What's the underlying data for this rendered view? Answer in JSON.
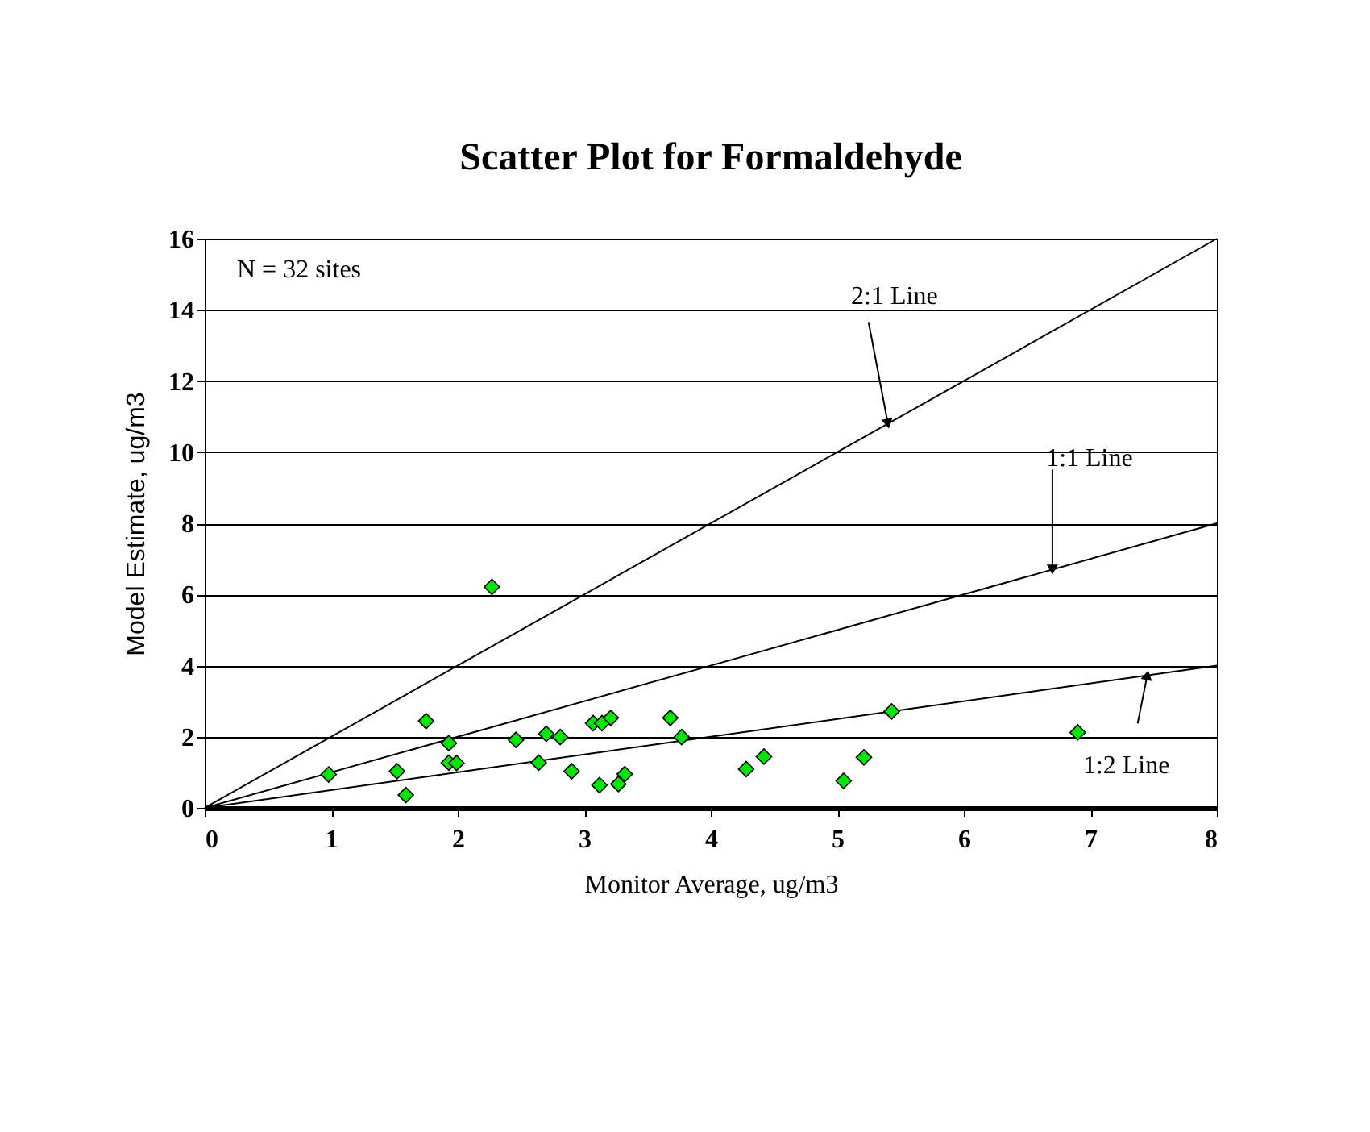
{
  "chart_data": {
    "type": "scatter",
    "title": "Scatter Plot for Formaldehyde",
    "xlabel": "Monitor Average, ug/m3",
    "ylabel": "Model Estimate, ug/m3",
    "xlim": [
      0,
      8
    ],
    "ylim": [
      0,
      16
    ],
    "xticks": [
      0,
      1,
      2,
      3,
      4,
      5,
      6,
      7,
      8
    ],
    "yticks": [
      0,
      2,
      4,
      6,
      8,
      10,
      12,
      14,
      16
    ],
    "grid": "y",
    "annotations": [
      "N = 32 sites",
      {
        "text": "2:1 Line",
        "x": 5.4,
        "y": 10.8
      },
      {
        "text": "1:1 Line",
        "x": 6.7,
        "y": 6.7
      },
      {
        "text": "1:2 Line",
        "x": 7.45,
        "y": 3.73
      }
    ],
    "series": [
      {
        "color": "#00e600",
        "marker": "diamond",
        "x": [
          0.98,
          1.52,
          1.59,
          1.75,
          1.93,
          1.93,
          1.99,
          2.27,
          2.46,
          2.64,
          2.7,
          2.81,
          2.9,
          3.07,
          3.14,
          3.21,
          3.12,
          3.27,
          3.32,
          3.68,
          3.77,
          4.28,
          4.42,
          5.05,
          5.21,
          5.43,
          6.9
        ],
        "values": [
          0.94,
          1.03,
          0.36,
          2.44,
          1.82,
          1.27,
          1.26,
          6.21,
          1.91,
          1.27,
          2.08,
          1.99,
          1.03,
          2.38,
          2.38,
          2.53,
          0.64,
          0.67,
          0.95,
          2.53,
          1.99,
          1.09,
          1.44,
          0.76,
          1.42,
          2.71,
          2.12
        ]
      },
      {
        "type": "line",
        "color": "#000000",
        "x": [
          0,
          8
        ],
        "values": [
          0,
          16
        ]
      },
      {
        "type": "line",
        "color": "#000000",
        "x": [
          0,
          8
        ],
        "values": [
          0,
          8
        ]
      },
      {
        "type": "line",
        "color": "#000000",
        "x": [
          0,
          8
        ],
        "values": [
          0,
          4
        ]
      }
    ]
  }
}
